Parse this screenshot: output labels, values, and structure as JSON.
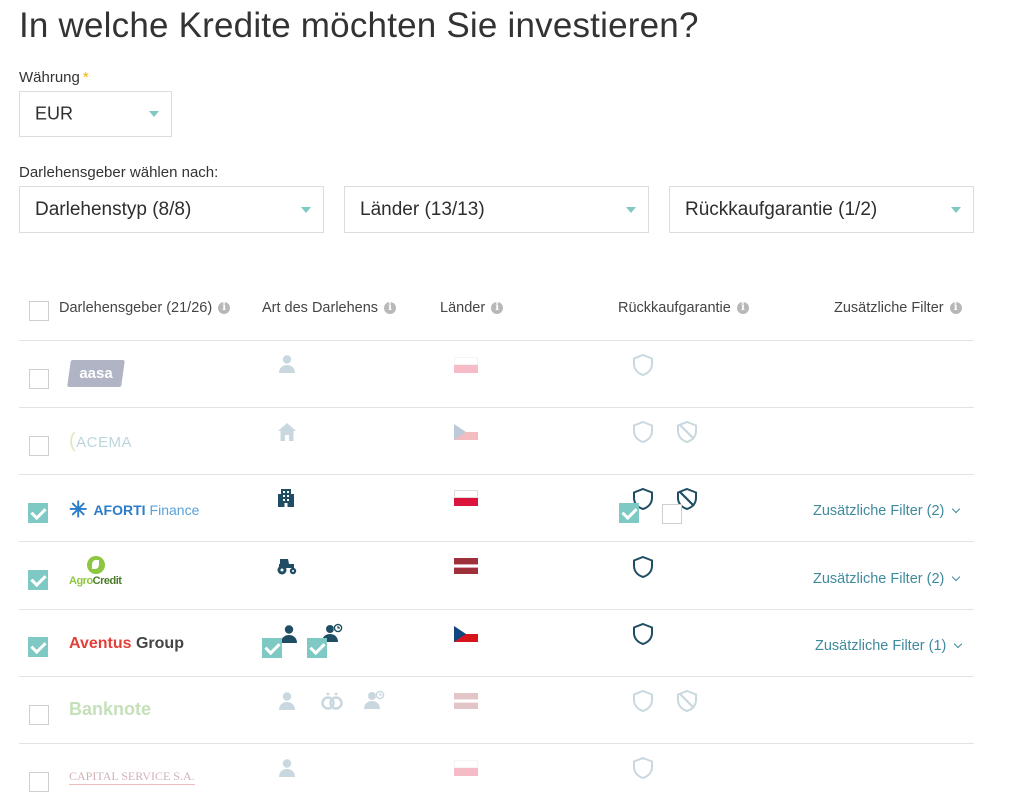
{
  "page": {
    "title": "In welche Kredite möchten Sie investieren?"
  },
  "currency": {
    "label": "Währung",
    "required_mark": "*",
    "value": "EUR"
  },
  "filters": {
    "label": "Darlehensgeber wählen nach:",
    "loan_type": "Darlehenstyp (8/8)",
    "countries": "Länder (13/13)",
    "buyback": "Rückkaufgarantie (1/2)"
  },
  "table": {
    "headers": {
      "lender": "Darlehensgeber (21/26)",
      "loan_type": "Art des Darlehens",
      "countries": "Länder",
      "buyback": "Rückkaufgarantie",
      "extra": "Zusätzliche Filter"
    },
    "rows": [
      {
        "name": "aasa",
        "selected": false,
        "loan_types": [
          "person-icon"
        ],
        "country": "Poland",
        "buyback": [
          "shield-icon"
        ],
        "extra": ""
      },
      {
        "name": "ACEMA",
        "selected": false,
        "loan_types": [
          "house-icon"
        ],
        "country": "Czech Republic",
        "buyback": [
          "shield-icon",
          "shield-slashed-icon"
        ],
        "extra": ""
      },
      {
        "name_main": "AFORTI",
        "name_sub": "Finance",
        "selected": true,
        "loan_types": [
          "building-icon"
        ],
        "country": "Poland",
        "buyback": [
          "shield-icon",
          "shield-slashed-icon"
        ],
        "extra": "Zusätzliche Filter (2)"
      },
      {
        "name_main": "Agro",
        "name_sub": "Credit",
        "selected": true,
        "loan_types": [
          "tractor-icon"
        ],
        "country": "Latvia",
        "buyback": [
          "shield-icon"
        ],
        "extra": "Zusätzliche Filter (2)"
      },
      {
        "name_main": "Aventus",
        "name_sub": "Group",
        "selected": true,
        "loan_types": [
          "person-icon",
          "person-clock-icon"
        ],
        "country": "Czech Republic",
        "buyback": [
          "shield-icon"
        ],
        "extra": "Zusätzliche Filter (1)"
      },
      {
        "name": "Banknote",
        "selected": false,
        "loan_types": [
          "person-icon",
          "rings-icon",
          "person-clock-icon"
        ],
        "country": "Latvia",
        "buyback": [
          "shield-icon",
          "shield-slashed-icon"
        ],
        "extra": ""
      },
      {
        "name": "CAPITAL SERVICE S.A.",
        "selected": false,
        "loan_types": [
          "person-icon"
        ],
        "country": "Poland",
        "buyback": [
          "shield-icon"
        ],
        "extra": ""
      }
    ]
  },
  "colors": {
    "accent": "#7ec9c4",
    "link": "#3e8a9c",
    "icon_dark": "#1f4d63",
    "icon_faded": "#c9d8de"
  }
}
